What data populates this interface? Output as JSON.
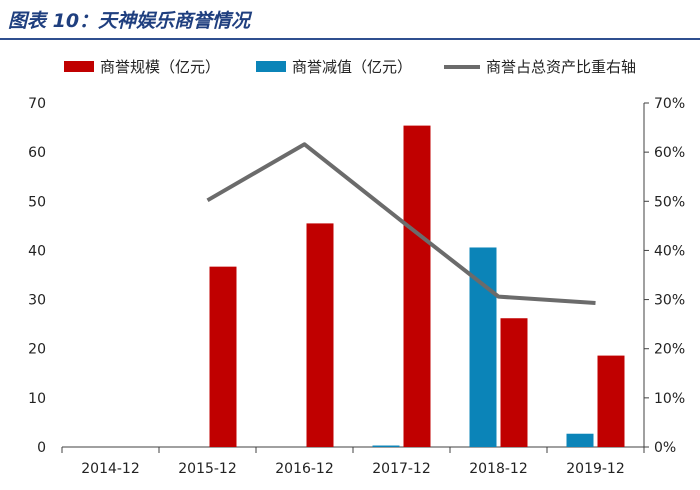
{
  "figure_title": "图表 10：天神娱乐商誉情况",
  "colors": {
    "title": "#1f3f7f",
    "title_rule": "#2f4f8f",
    "goodwill_bar": "#c00000",
    "impairment_bar": "#0b84b8",
    "ratio_line": "#6b6b6b",
    "axis": "#404040"
  },
  "chart_data": {
    "type": "bar",
    "categories": [
      "2014-12",
      "2015-12",
      "2016-12",
      "2017-12",
      "2018-12",
      "2019-12"
    ],
    "series": [
      {
        "name": "商誉规模（亿元）",
        "type": "bar",
        "axis": "left",
        "color": "#c00000",
        "values": [
          0,
          36.7,
          45.5,
          65.4,
          26.2,
          18.6
        ]
      },
      {
        "name": "商誉减值（亿元）",
        "type": "bar",
        "axis": "left",
        "color": "#0b84b8",
        "values": [
          0,
          0,
          0,
          0.3,
          40.6,
          2.7
        ]
      },
      {
        "name": "商誉占总资产比重右轴",
        "type": "line",
        "axis": "right",
        "color": "#6b6b6b",
        "values": [
          null,
          50.2,
          61.6,
          46.0,
          30.6,
          29.3
        ]
      }
    ],
    "ylim": [
      0,
      70
    ],
    "yticks": [
      "0",
      "10",
      "20",
      "30",
      "40",
      "50",
      "60",
      "70"
    ],
    "y2lim": [
      0,
      70
    ],
    "y2ticks": [
      "0%",
      "10%",
      "20%",
      "30%",
      "40%",
      "50%",
      "60%",
      "70%"
    ],
    "legend_position": "top",
    "grid": false
  }
}
